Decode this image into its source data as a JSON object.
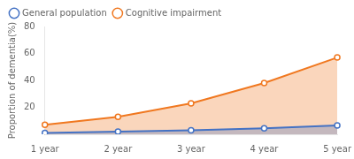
{
  "chart_data": {
    "type": "area",
    "categories": [
      "1 year",
      "2 year",
      "3 year",
      "4 year",
      "5 year"
    ],
    "ylabel": "Proportion of dementia(%)",
    "series": [
      {
        "name": "Cognitive impairment",
        "color": "#f07820",
        "marker": "o",
        "line_style": "solid",
        "values": [
          7,
          13,
          23,
          38,
          57
        ]
      },
      {
        "name": "General population",
        "color": "#4472c4",
        "marker": "o",
        "line_style": "solid",
        "values": [
          1,
          2,
          3,
          4.5,
          6.5
        ]
      }
    ],
    "ylim": [
      0,
      80
    ],
    "yticks": [
      20,
      40,
      60,
      80
    ],
    "grid": false,
    "legend": "upper left"
  }
}
